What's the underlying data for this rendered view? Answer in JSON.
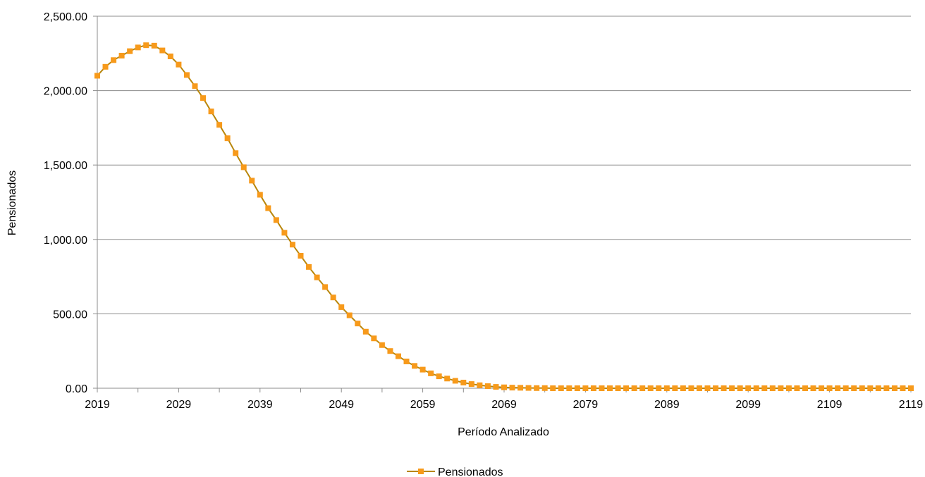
{
  "chart_data": {
    "type": "line",
    "xlabel": "Período Analizado",
    "ylabel": "Pensionados",
    "ylim": [
      0,
      2500
    ],
    "yticks": [
      "0.00",
      "500.00",
      "1,000.00",
      "1,500.00",
      "2,000.00",
      "2,500.00"
    ],
    "yticks_values": [
      0,
      500,
      1000,
      1500,
      2000,
      2500
    ],
    "xlim": [
      2019,
      2119
    ],
    "xticks": [
      "2019",
      "2029",
      "2039",
      "2049",
      "2059",
      "2069",
      "2079",
      "2089",
      "2099",
      "2109",
      "2119"
    ],
    "grid": true,
    "legend_position": "bottom",
    "line_color": "#B8860B",
    "marker_color": "#F79A1B",
    "series": [
      {
        "name": "Pensionados",
        "x": [
          2019,
          2020,
          2021,
          2022,
          2023,
          2024,
          2025,
          2026,
          2027,
          2028,
          2029,
          2030,
          2031,
          2032,
          2033,
          2034,
          2035,
          2036,
          2037,
          2038,
          2039,
          2040,
          2041,
          2042,
          2043,
          2044,
          2045,
          2046,
          2047,
          2048,
          2049,
          2050,
          2051,
          2052,
          2053,
          2054,
          2055,
          2056,
          2057,
          2058,
          2059,
          2060,
          2061,
          2062,
          2063,
          2064,
          2065,
          2066,
          2067,
          2068,
          2069,
          2070,
          2071,
          2072,
          2073,
          2074,
          2075,
          2076,
          2077,
          2078,
          2079,
          2080,
          2081,
          2082,
          2083,
          2084,
          2085,
          2086,
          2087,
          2088,
          2089,
          2090,
          2091,
          2092,
          2093,
          2094,
          2095,
          2096,
          2097,
          2098,
          2099,
          2100,
          2101,
          2102,
          2103,
          2104,
          2105,
          2106,
          2107,
          2108,
          2109,
          2110,
          2111,
          2112,
          2113,
          2114,
          2115,
          2116,
          2117,
          2118,
          2119
        ],
        "values": [
          2100,
          2160,
          2205,
          2235,
          2265,
          2290,
          2305,
          2302,
          2270,
          2230,
          2175,
          2105,
          2030,
          1950,
          1860,
          1770,
          1680,
          1580,
          1485,
          1395,
          1300,
          1210,
          1130,
          1045,
          965,
          890,
          815,
          745,
          680,
          610,
          545,
          490,
          435,
          380,
          335,
          290,
          250,
          215,
          180,
          150,
          125,
          100,
          80,
          65,
          50,
          38,
          28,
          20,
          14,
          9,
          6,
          4,
          3,
          2,
          1,
          1,
          0,
          0,
          0,
          0,
          0,
          0,
          0,
          0,
          0,
          0,
          0,
          0,
          0,
          0,
          0,
          0,
          0,
          0,
          0,
          0,
          0,
          0,
          0,
          0,
          0,
          0,
          0,
          0,
          0,
          0,
          0,
          0,
          0,
          0,
          0,
          0,
          0,
          0,
          0,
          0,
          0,
          0,
          0,
          0,
          0
        ]
      }
    ]
  }
}
